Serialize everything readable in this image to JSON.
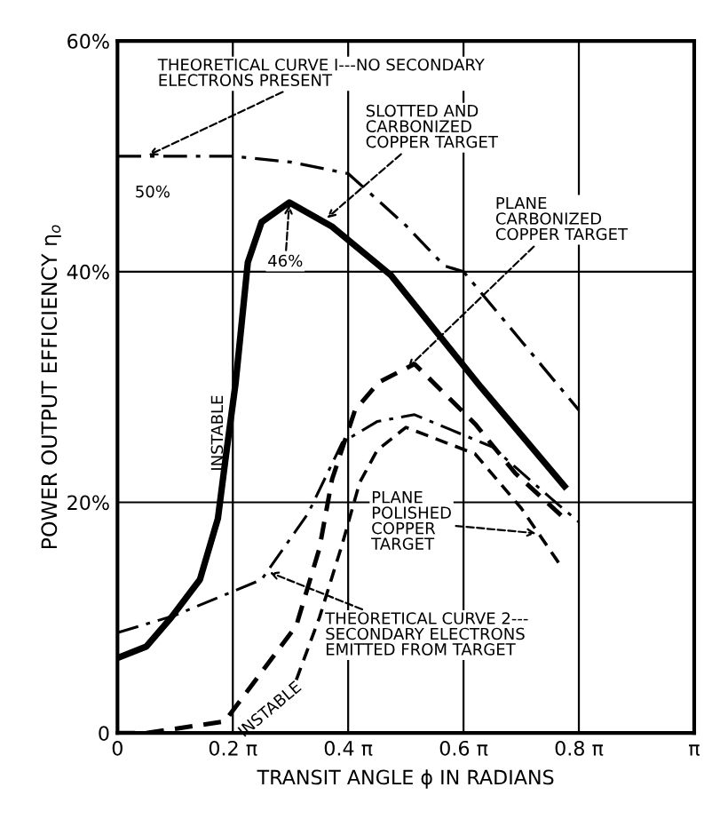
{
  "chart_data": {
    "type": "line",
    "xlabel": "TRANSIT ANGLE ϕ IN RADIANS",
    "ylabel": "POWER OUTPUT EFFICIENCY η$_{o}$",
    "xlim": [
      0,
      3.1416
    ],
    "ylim": [
      0,
      60
    ],
    "xticks": [
      0,
      {
        "value": 0.6283,
        "label": "0.2 π"
      },
      {
        "value": 1.2566,
        "label": "0.4 π"
      },
      {
        "value": 1.885,
        "label": "0.6 π"
      },
      {
        "value": 2.5133,
        "label": "0.8 π"
      },
      {
        "value": 3.1416,
        "label": "π"
      }
    ],
    "yticks": [
      0,
      {
        "value": 20,
        "label": "20%"
      },
      {
        "value": 40,
        "label": "40%"
      },
      {
        "value": 60,
        "label": "60%"
      }
    ],
    "grid": true,
    "legend": false,
    "marker": "none",
    "series": [
      {
        "color": "#000000",
        "line_style": "dashdot",
        "x": [
          0,
          0.314,
          0.628,
          0.942,
          1.257,
          1.571,
          1.781,
          1.885,
          2.199,
          2.513
        ],
        "values": [
          50,
          50,
          50,
          49.5,
          48.5,
          44,
          40.5,
          40,
          34,
          28
        ]
      },
      {
        "color": "#000000",
        "line_style": "solid",
        "x": [
          0,
          0.157,
          0.292,
          0.449,
          0.547,
          0.597,
          0.644,
          0.71,
          0.785,
          0.936,
          1.169,
          1.489,
          1.979,
          2.435
        ],
        "values": [
          6.5,
          7.5,
          10,
          13.3,
          18.6,
          24.8,
          30.4,
          40.8,
          44.3,
          46,
          43.9,
          39.7,
          30,
          21.4
        ]
      },
      {
        "color": "#000000",
        "line_style": "dashed",
        "x": [
          0,
          0.157,
          0.584,
          0.974,
          1.1,
          1.169,
          1.294,
          1.423,
          1.618,
          1.948,
          2.168,
          2.435
        ],
        "values": [
          0,
          0,
          1,
          9.3,
          16,
          22,
          28,
          30.4,
          32,
          26.8,
          22.5,
          18.6
        ]
      },
      {
        "color": "#000000",
        "line_style": "dashdot",
        "x": [
          0,
          0.314,
          0.785,
          1.037,
          1.225,
          1.414,
          1.618,
          2.042,
          2.372,
          2.513
        ],
        "values": [
          8.7,
          10.2,
          13.3,
          19,
          25.2,
          27,
          27.6,
          24.8,
          20.2,
          18.3
        ]
      },
      {
        "color": "#000000",
        "line_style": "dashed",
        "x": [
          0.974,
          1.1,
          1.225,
          1.319,
          1.414,
          1.571,
          1.948,
          2.199,
          2.419
        ],
        "values": [
          4.6,
          10,
          16.4,
          21.7,
          24.5,
          26.5,
          24.2,
          19.5,
          14.4
        ]
      }
    ],
    "annotations": [
      {
        "text": "THEORETICAL CURVE I---NO SECONDARY\nELECTRONS PRESENT",
        "x": 0.157,
        "y": 50
      },
      "50%",
      {
        "text": "46%",
        "x": 0.936,
        "y": 46
      },
      {
        "text": "SLOTTED AND\nCARBONIZED\nCOPPER TARGET",
        "x": 1.131,
        "y": 44.5
      },
      {
        "text": "PLANE\nCARBONIZED\nCOPPER TARGET",
        "x": 1.571,
        "y": 31.5
      },
      "INSTABLE",
      "INSTABLE",
      {
        "text": "PLANE\nPOLISHED\nCOPPER\nTARGET",
        "x": 2.293,
        "y": 17.3
      },
      {
        "text": "THEORETICAL CURVE 2---\nSECONDARY ELECTRONS\nEMITTED FROM TARGET",
        "x": 0.817,
        "y": 14
      }
    ]
  }
}
